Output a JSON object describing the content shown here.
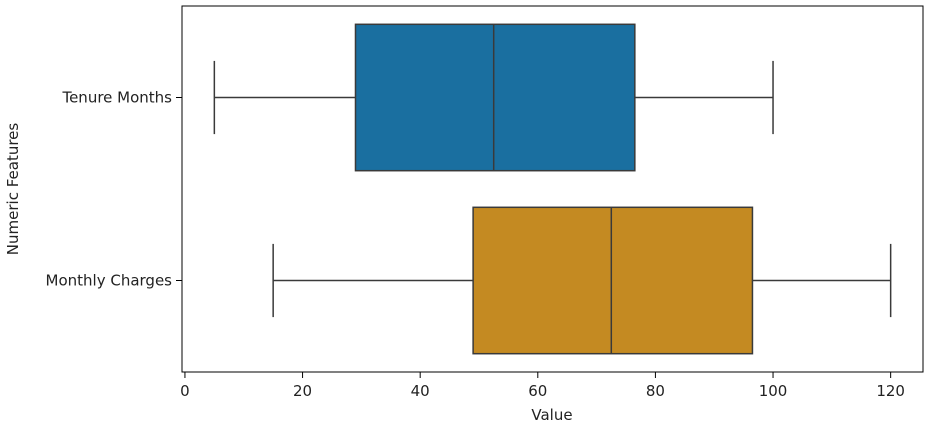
{
  "chart_data": {
    "type": "boxplot",
    "orientation": "horizontal",
    "xlabel": "Value",
    "ylabel": "Numeric Features",
    "xlim": [
      -0.5,
      125.5
    ],
    "xticks": [
      0,
      20,
      40,
      60,
      80,
      100,
      120
    ],
    "grid": false,
    "legend": "none",
    "categories": [
      "Tenure Months",
      "Monthly Charges"
    ],
    "series": [
      {
        "category": "Tenure Months",
        "min": 5,
        "q1": 29,
        "median": 52.5,
        "q3": 76.5,
        "max": 100,
        "color": "#1a6fa0"
      },
      {
        "category": "Monthly Charges",
        "min": 15,
        "q1": 49,
        "median": 72.5,
        "q3": 96.5,
        "max": 120,
        "color": "#c48a22"
      }
    ]
  }
}
